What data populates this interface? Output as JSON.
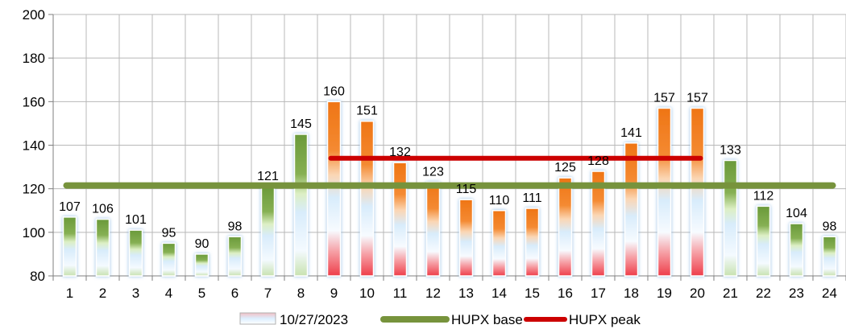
{
  "chart_data": {
    "type": "bar",
    "categories": [
      "1",
      "2",
      "3",
      "4",
      "5",
      "6",
      "7",
      "8",
      "9",
      "10",
      "11",
      "12",
      "13",
      "14",
      "15",
      "16",
      "17",
      "18",
      "19",
      "20",
      "21",
      "22",
      "23",
      "24"
    ],
    "series": [
      {
        "name": "10/27/2023",
        "values": [
          107,
          106,
          101,
          95,
          90,
          98,
          121,
          145,
          160,
          151,
          132,
          123,
          115,
          110,
          111,
          125,
          128,
          141,
          157,
          157,
          133,
          112,
          104,
          98
        ],
        "peak_hours": [
          "9",
          "10",
          "11",
          "12",
          "13",
          "14",
          "15",
          "16",
          "17",
          "18",
          "19",
          "20"
        ]
      },
      {
        "name": "HUPX base",
        "type": "line",
        "value": 121.5,
        "from": "1",
        "to": "24"
      },
      {
        "name": "HUPX peak",
        "type": "line",
        "value": 134,
        "from": "9",
        "to": "20"
      }
    ],
    "ylim": [
      80,
      200
    ],
    "yticks": [
      "80",
      "100",
      "120",
      "140",
      "160",
      "180",
      "200"
    ],
    "grid": true,
    "legend": "bottom",
    "colors": {
      "offpeak_bar": "#6a9a3a",
      "peak_bar": "#f07818",
      "bar_body": "#dceefb",
      "base_line": "#77933c",
      "peak_line": "#cc0000",
      "grid": "#b8b8b8"
    }
  }
}
